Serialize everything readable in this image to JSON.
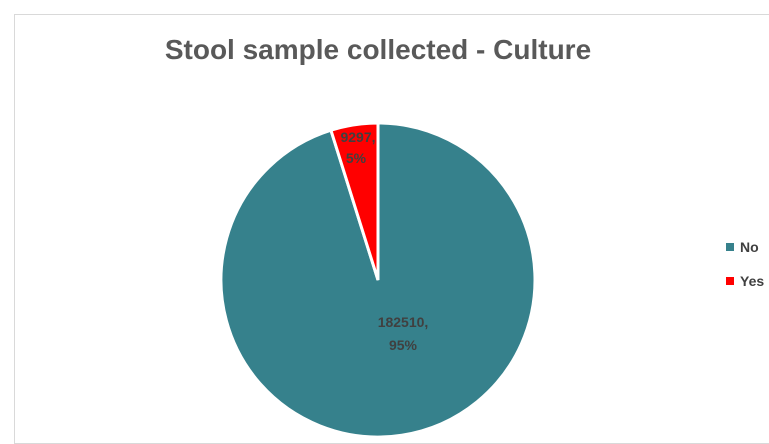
{
  "chart_data": {
    "type": "pie",
    "title": "Stool sample collected - Culture",
    "slices": [
      {
        "label": "No",
        "value": 182510,
        "percent": "95%",
        "color": "#36818C"
      },
      {
        "label": "Yes",
        "value": 9297,
        "percent": "5%",
        "color": "#FF0000"
      }
    ],
    "data_labels": {
      "no": [
        "182510,",
        "95%"
      ],
      "yes": [
        "9297,",
        "5%"
      ]
    },
    "legend": [
      "No",
      "Yes"
    ],
    "legend_position": "right"
  }
}
